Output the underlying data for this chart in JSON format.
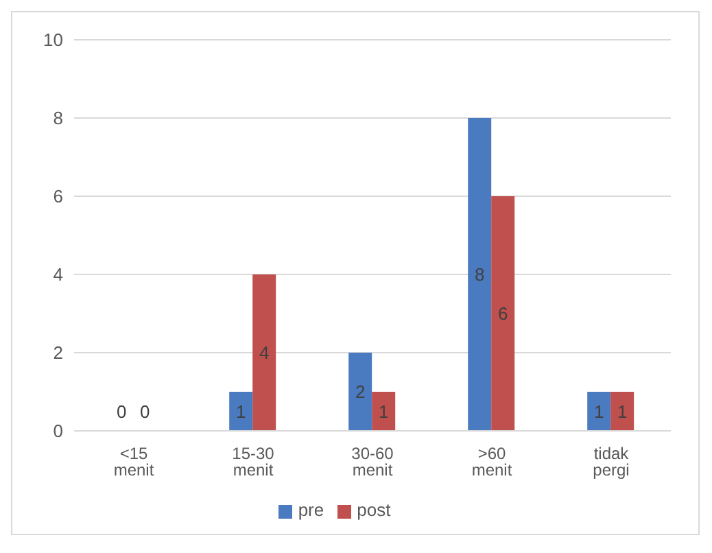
{
  "chart_data": {
    "type": "bar",
    "categories": [
      "<15 menit",
      "15-30 menit",
      "30-60 menit",
      ">60 menit",
      "tidak pergi"
    ],
    "series": [
      {
        "name": "pre",
        "color": "#4a7bc0",
        "values": [
          0,
          1,
          2,
          8,
          1
        ]
      },
      {
        "name": "post",
        "color": "#c0504d",
        "values": [
          0,
          4,
          1,
          6,
          1
        ]
      }
    ],
    "ylim": [
      0,
      10
    ],
    "yticks": [
      0,
      2,
      4,
      6,
      8,
      10
    ],
    "grid": "y",
    "legend": "bottom",
    "data_labels": true
  }
}
